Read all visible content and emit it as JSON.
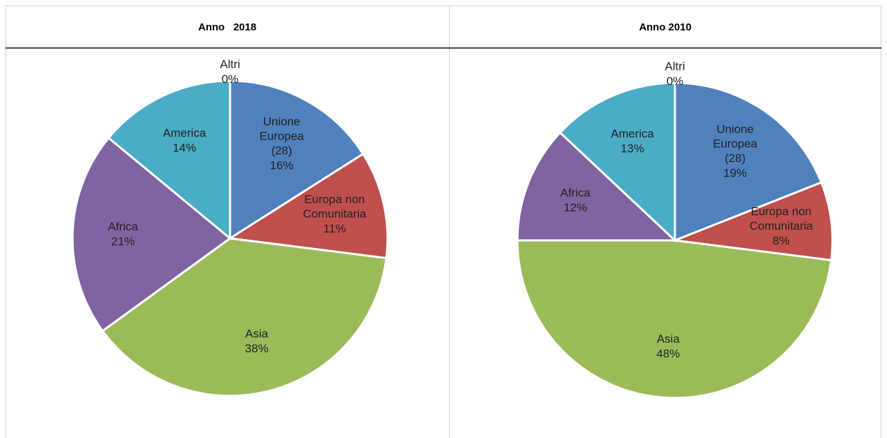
{
  "chart_data": [
    {
      "type": "pie",
      "title": "Anno   2018",
      "categories": [
        "Unione Europea (28)",
        "Europa non Comunitaria",
        "Asia",
        "Africa",
        "America",
        "Altri"
      ],
      "values": [
        16,
        11,
        38,
        21,
        14,
        0
      ],
      "value_labels": [
        "16%",
        "11%",
        "38%",
        "21%",
        "14%",
        "0%"
      ],
      "colors": [
        "#4f81bd",
        "#c0504d",
        "#9bbb59",
        "#8064a2",
        "#4bacc6",
        "#f79646"
      ]
    },
    {
      "type": "pie",
      "title": "Anno 2010",
      "categories": [
        "Unione Europea (28)",
        "Europa non Comunitaria",
        "Asia",
        "Africa",
        "America",
        "Altri"
      ],
      "values": [
        19,
        8,
        48,
        12,
        13,
        0
      ],
      "value_labels": [
        "19%",
        "8%",
        "48%",
        "12%",
        "13%",
        "0%"
      ],
      "colors": [
        "#4f81bd",
        "#c0504d",
        "#9bbb59",
        "#8064a2",
        "#4bacc6",
        "#f79646"
      ]
    }
  ]
}
